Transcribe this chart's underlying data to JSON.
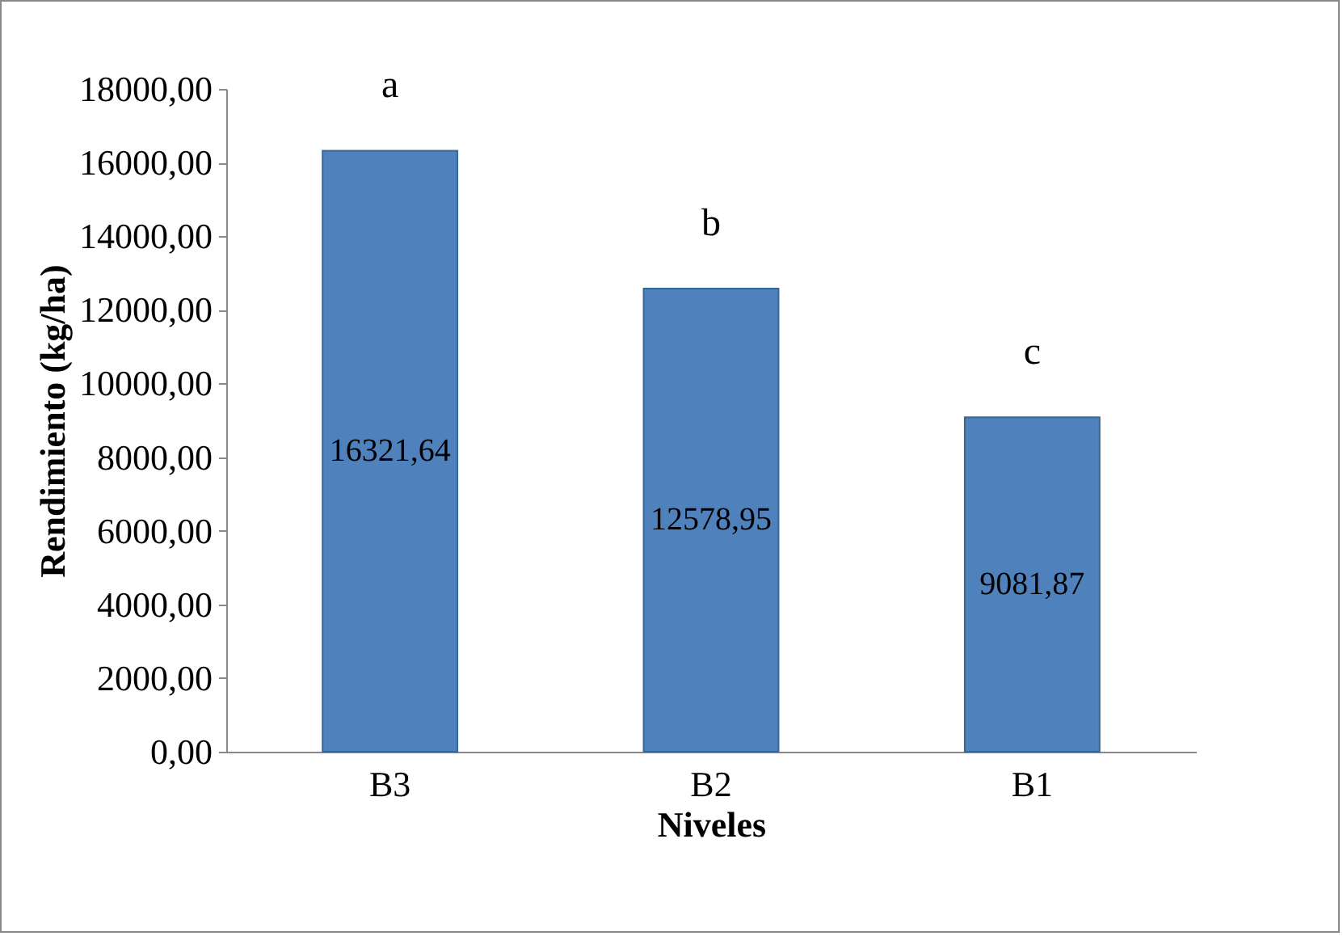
{
  "chart_data": {
    "type": "bar",
    "xlabel": "Niveles",
    "ylabel": "Rendimiento (kg/ha)",
    "categories": [
      "B3",
      "B2",
      "B1"
    ],
    "values": [
      16321.64,
      12578.95,
      9081.87
    ],
    "value_labels": [
      "16321,64",
      "12578,95",
      "9081,87"
    ],
    "color": "#4f81bd",
    "ylim": [
      0,
      18000
    ],
    "yticks": [
      {
        "value": 0,
        "label": "0,00"
      },
      {
        "value": 2000,
        "label": "2000,00"
      },
      {
        "value": 4000,
        "label": "4000,00"
      },
      {
        "value": 6000,
        "label": "6000,00"
      },
      {
        "value": 8000,
        "label": "8000,00"
      },
      {
        "value": 10000,
        "label": "10000,00"
      },
      {
        "value": 12000,
        "label": "12000,00"
      },
      {
        "value": 14000,
        "label": "14000,00"
      },
      {
        "value": 16000,
        "label": "16000,00"
      },
      {
        "value": 18000,
        "label": "18000,00"
      }
    ],
    "annotations": [
      "a",
      "b",
      "c"
    ]
  }
}
